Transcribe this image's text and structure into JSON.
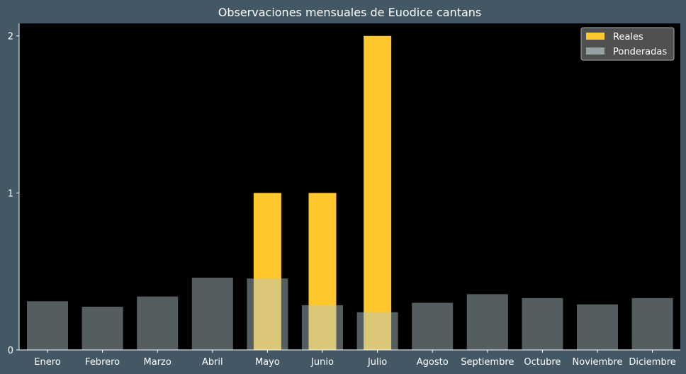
{
  "chart_data": {
    "type": "bar",
    "title": "Observaciones mensuales de Euodice cantans",
    "xlabel": "",
    "ylabel": "",
    "categories": [
      "Enero",
      "Febrero",
      "Marzo",
      "Abril",
      "Mayo",
      "Junio",
      "Julio",
      "Agosto",
      "Septiembre",
      "Octubre",
      "Noviembre",
      "Diciembre"
    ],
    "series": [
      {
        "name": "Reales",
        "values": [
          0,
          0,
          0,
          0,
          1,
          1,
          2,
          0,
          0,
          0,
          0,
          0
        ],
        "color": "#ffc72c"
      },
      {
        "name": "Ponderadas",
        "values": [
          0.31,
          0.275,
          0.34,
          0.46,
          0.455,
          0.285,
          0.24,
          0.3,
          0.355,
          0.33,
          0.29,
          0.33
        ],
        "color": "#b0c4c8"
      }
    ],
    "ylim": [
      0,
      2.08
    ],
    "yticks": [
      0,
      1,
      2
    ],
    "grid": false,
    "legend_position": "top-right",
    "colors": {
      "page_background": "#435864",
      "plot_background": "#000000",
      "text": "#ffffff",
      "legend_background": "#595959"
    }
  }
}
